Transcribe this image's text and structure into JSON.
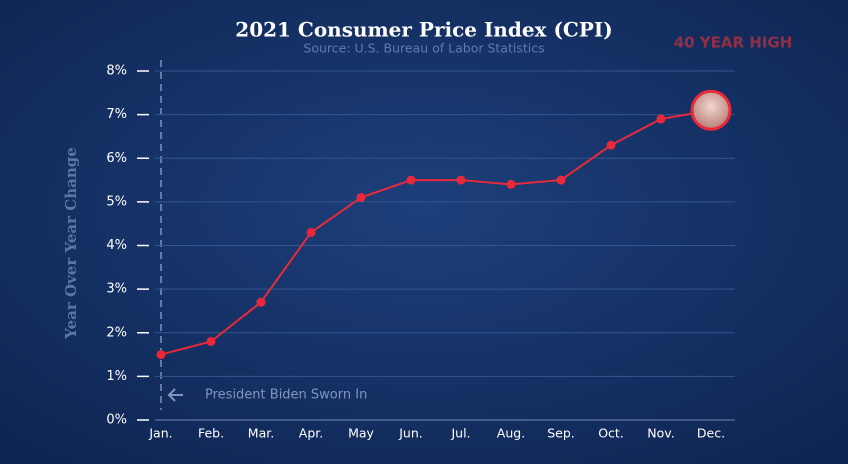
{
  "chart_data": {
    "type": "line",
    "title": "2021 Consumer Price Index (CPI)",
    "subtitle": "Source: U.S. Bureau of Labor Statistics",
    "y_label": "Year Over Year Change",
    "annotations": [
      "40 YEAR HIGH",
      "President Biden Sworn In"
    ],
    "categories": [
      "Jan.",
      "Feb.",
      "Mar.",
      "Apr.",
      "May",
      "Jun.",
      "Jul.",
      "Aug.",
      "Sep.",
      "Oct.",
      "Nov.",
      "Dec."
    ],
    "series": [
      {
        "name": "CPI",
        "color": "#e8293a",
        "values": [
          1.5,
          1.8,
          2.7,
          4.3,
          5.1,
          5.5,
          5.5,
          5.4,
          5.5,
          6.3,
          6.9,
          7.1
        ]
      }
    ],
    "ylim": [
      0,
      8
    ],
    "yticks": [
      {
        "value": 0,
        "label": "0%"
      },
      {
        "value": 1,
        "label": "1%"
      },
      {
        "value": 2,
        "label": "2%"
      },
      {
        "value": 3,
        "label": "3%"
      },
      {
        "value": 4,
        "label": "4%"
      },
      {
        "value": 5,
        "label": "5%"
      },
      {
        "value": 6,
        "label": "6%"
      },
      {
        "value": 7,
        "label": "7%"
      },
      {
        "value": 8,
        "label": "8%"
      }
    ],
    "grid": true
  }
}
